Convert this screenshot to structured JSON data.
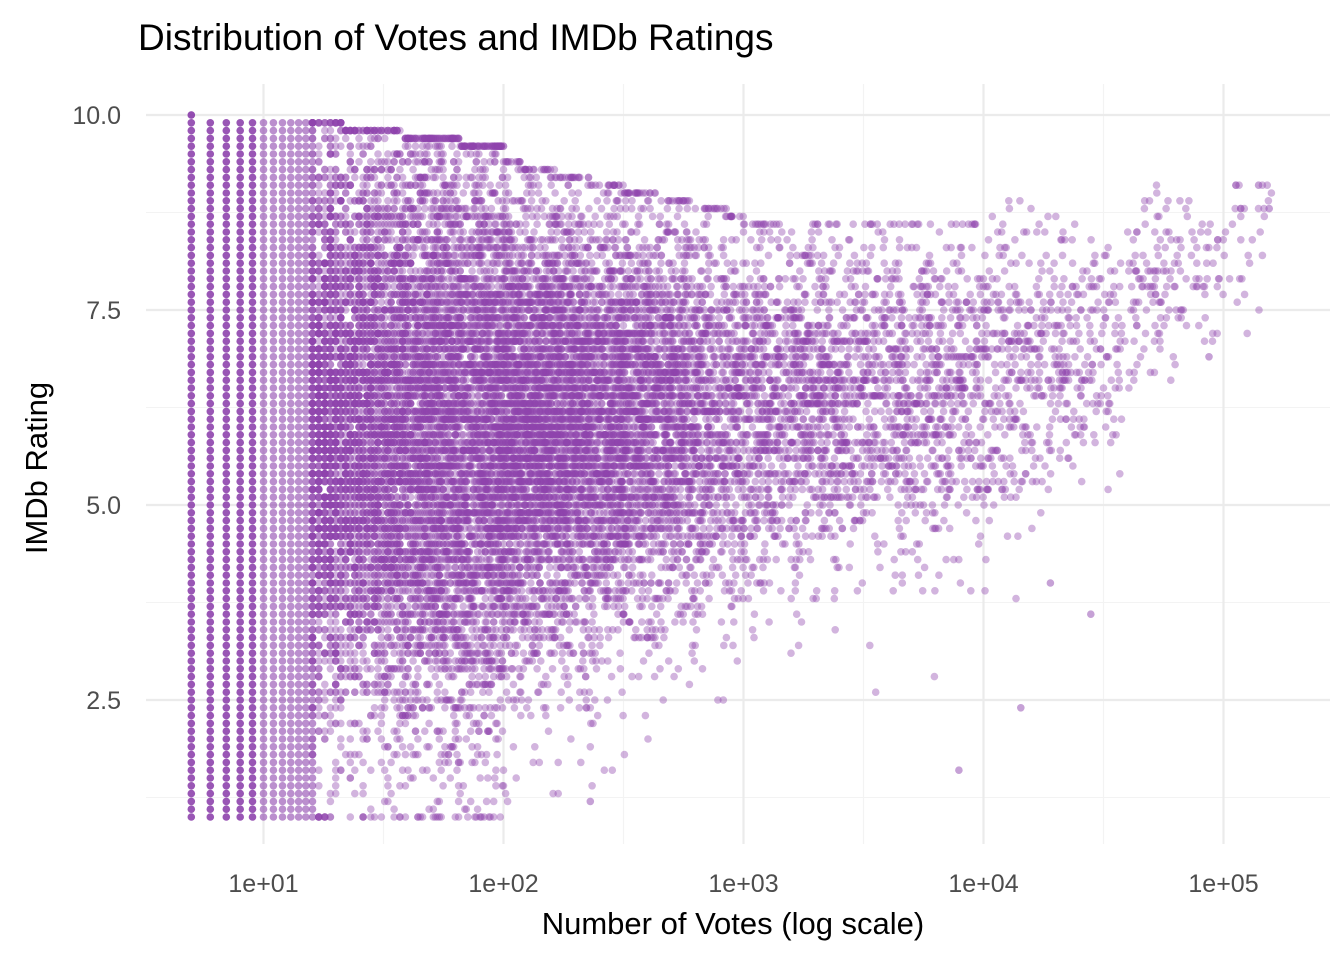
{
  "chart_data": {
    "type": "scatter",
    "title": "Distribution of Votes and IMDb Ratings",
    "xlabel": "Number of Votes (log scale)",
    "ylabel": "IMDb Rating",
    "x_scale": "log10",
    "xlim": [
      3.5,
      190000
    ],
    "ylim": [
      0.82,
      10.38
    ],
    "x_ticks": [
      10,
      100,
      1000,
      10000,
      100000
    ],
    "x_tick_labels": [
      "1e+01",
      "1e+02",
      "1e+03",
      "1e+04",
      "1e+05"
    ],
    "y_ticks": [
      2.5,
      5.0,
      7.5,
      10.0
    ],
    "y_tick_labels": [
      "2.5",
      "5.0",
      "7.5",
      "10.0"
    ],
    "grid": true,
    "legend": "none",
    "point_color": "#8E44AD",
    "point_alpha": 0.4,
    "point_count_estimate": 60000,
    "distribution_summary": [
      {
        "votes": 5,
        "rating_min": 1.0,
        "rating_max": 10.0,
        "rating_center": 6.0
      },
      {
        "votes": 10,
        "rating_min": 1.0,
        "rating_max": 9.9,
        "rating_center": 6.0
      },
      {
        "votes": 30,
        "rating_min": 1.0,
        "rating_max": 9.9,
        "rating_center": 6.0
      },
      {
        "votes": 100,
        "rating_min": 1.0,
        "rating_max": 9.4,
        "rating_center": 6.0
      },
      {
        "votes": 300,
        "rating_min": 1.6,
        "rating_max": 9.3,
        "rating_center": 6.0
      },
      {
        "votes": 1000,
        "rating_min": 1.8,
        "rating_max": 8.6,
        "rating_center": 6.2
      },
      {
        "votes": 3000,
        "rating_min": 1.7,
        "rating_max": 8.6,
        "rating_center": 6.3
      },
      {
        "votes": 10000,
        "rating_min": 2.3,
        "rating_max": 8.6,
        "rating_center": 6.6
      },
      {
        "votes": 30000,
        "rating_min": 3.6,
        "rating_max": 8.9,
        "rating_center": 7.1
      },
      {
        "votes": 100000,
        "rating_min": 7.6,
        "rating_max": 9.1,
        "rating_center": 8.5
      },
      {
        "votes": 150000,
        "rating_min": 8.5,
        "rating_max": 9.1,
        "rating_center": 8.8
      }
    ],
    "notable_points": [
      {
        "votes": 5,
        "rating": 10.0
      },
      {
        "votes": 80,
        "rating": 1.0
      },
      {
        "votes": 230,
        "rating": 1.2
      },
      {
        "votes": 7900,
        "rating": 1.6
      },
      {
        "votes": 14300,
        "rating": 2.4
      },
      {
        "votes": 28000,
        "rating": 3.6
      },
      {
        "votes": 19000,
        "rating": 4.0
      },
      {
        "votes": 87000,
        "rating": 6.9
      },
      {
        "votes": 140000,
        "rating": 9.1
      },
      {
        "votes": 155000,
        "rating": 8.8
      }
    ]
  }
}
